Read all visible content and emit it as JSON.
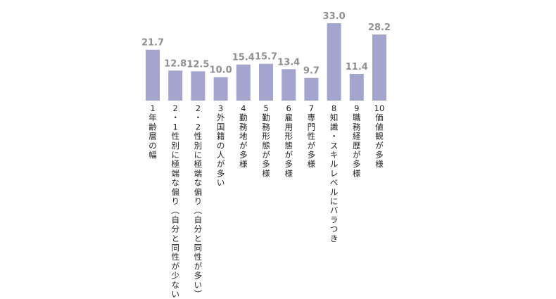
{
  "chart_data": {
    "type": "bar",
    "categories": [
      "1 年齢層の幅",
      "2-1 性別に極端な偏り(自分と同性が少ない)",
      "2-2 性別に極端な偏り(自分と同性が多い)",
      "3 外国籍の人が多い",
      "4 勤務地が多様",
      "5 勤務形態が多様",
      "6 雇用形態が多様",
      "7 専門性が多様",
      "8 知識・スキルレベルにバラつき",
      "9 職務経歴が多様",
      "10 価値観が多様"
    ],
    "values": [
      21.7,
      12.8,
      12.5,
      10.0,
      15.4,
      15.7,
      13.4,
      9.7,
      33.0,
      11.4,
      28.2
    ],
    "value_labels": [
      "21.7",
      "12.8",
      "12.5",
      "10.0",
      "15.4",
      "15.7",
      "13.4",
      "9.7",
      "33.0",
      "11.4",
      "28.2"
    ],
    "title": "",
    "xlabel": "",
    "ylabel": "",
    "ylim": [
      0,
      33.0
    ],
    "grid": false,
    "legend": "none",
    "bar_color": "#a3a5cf",
    "value_label_color": "#8f8f8f",
    "category_label_color": "#222222"
  }
}
